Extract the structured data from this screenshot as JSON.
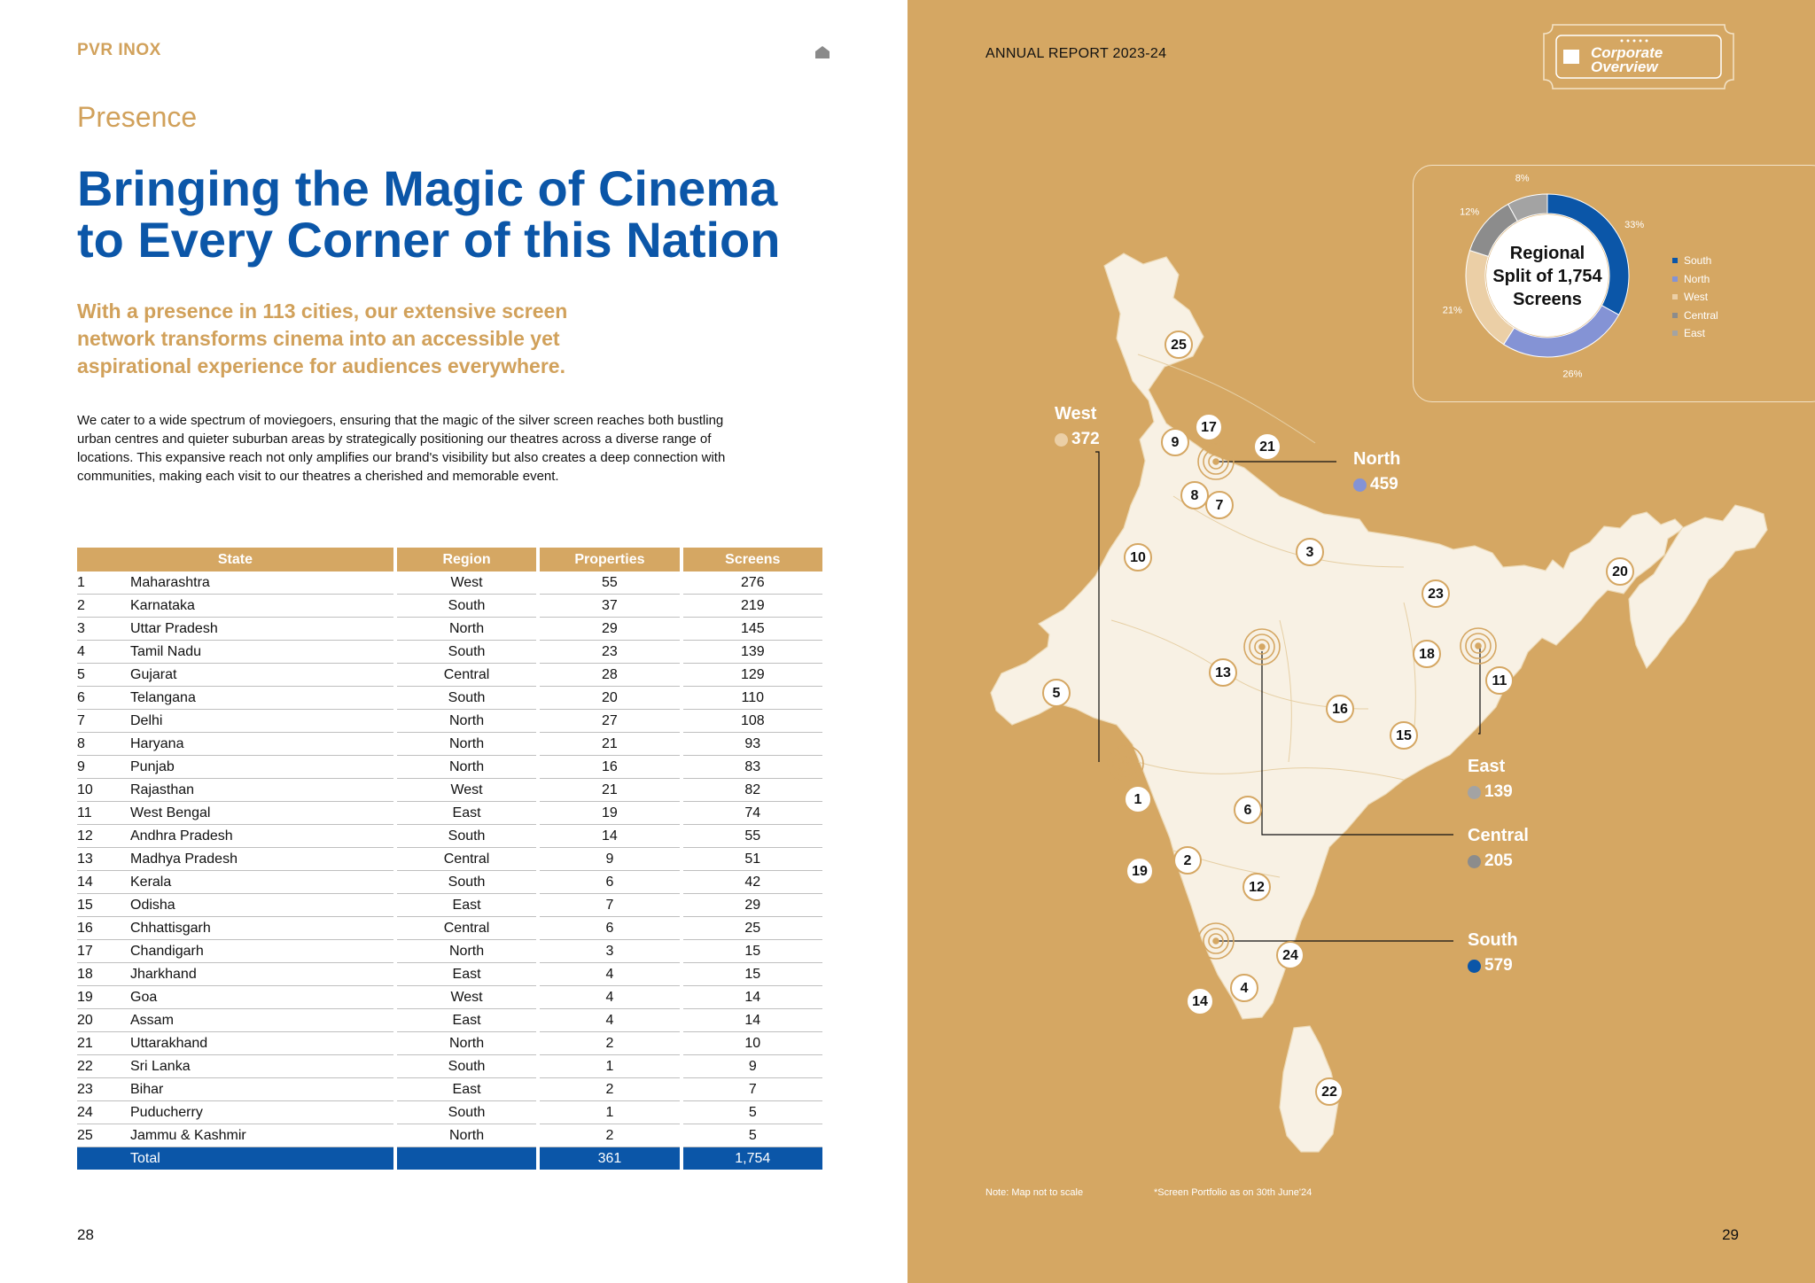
{
  "left_page": {
    "logo_brand": "PVR",
    "logo_brand2": "INOX",
    "section": "Presence",
    "headline_line1": "Bringing the Magic of Cinema",
    "headline_line2": "to Every Corner of this Nation",
    "subheading": "With a presence in 113 cities, our extensive screen network transforms cinema into an accessible yet aspirational experience for audiences everywhere.",
    "body": "We cater to a wide spectrum of moviegoers, ensuring that the magic of the silver screen reaches both bustling urban centres and quieter suburban areas by strategically positioning our theatres across a diverse range of locations. This expansive reach not only amplifies our brand's visibility but also creates a deep connection with communities, making each visit to our theatres a cherished and memorable event.",
    "page_number": "28"
  },
  "table": {
    "headers": [
      "State",
      "Region",
      "Properties",
      "Screens"
    ],
    "rows": [
      [
        "1",
        "Maharashtra",
        "West",
        "55",
        "276"
      ],
      [
        "2",
        "Karnataka",
        "South",
        "37",
        "219"
      ],
      [
        "3",
        "Uttar Pradesh",
        "North",
        "29",
        "145"
      ],
      [
        "4",
        "Tamil Nadu",
        "South",
        "23",
        "139"
      ],
      [
        "5",
        "Gujarat",
        "Central",
        "28",
        "129"
      ],
      [
        "6",
        "Telangana",
        "South",
        "20",
        "110"
      ],
      [
        "7",
        "Delhi",
        "North",
        "27",
        "108"
      ],
      [
        "8",
        "Haryana",
        "North",
        "21",
        "93"
      ],
      [
        "9",
        "Punjab",
        "North",
        "16",
        "83"
      ],
      [
        "10",
        "Rajasthan",
        "West",
        "21",
        "82"
      ],
      [
        "11",
        "West Bengal",
        "East",
        "19",
        "74"
      ],
      [
        "12",
        "Andhra Pradesh",
        "South",
        "14",
        "55"
      ],
      [
        "13",
        "Madhya Pradesh",
        "Central",
        "9",
        "51"
      ],
      [
        "14",
        "Kerala",
        "South",
        "6",
        "42"
      ],
      [
        "15",
        "Odisha",
        "East",
        "7",
        "29"
      ],
      [
        "16",
        "Chhattisgarh",
        "Central",
        "6",
        "25"
      ],
      [
        "17",
        "Chandigarh",
        "North",
        "3",
        "15"
      ],
      [
        "18",
        "Jharkhand",
        "East",
        "4",
        "15"
      ],
      [
        "19",
        "Goa",
        "West",
        "4",
        "14"
      ],
      [
        "20",
        "Assam",
        "East",
        "4",
        "14"
      ],
      [
        "21",
        "Uttarakhand",
        "North",
        "2",
        "10"
      ],
      [
        "22",
        "Sri Lanka",
        "South",
        "1",
        "9"
      ],
      [
        "23",
        "Bihar",
        "East",
        "2",
        "7"
      ],
      [
        "24",
        "Puducherry",
        "South",
        "1",
        "5"
      ],
      [
        "25",
        "Jammu & Kashmir",
        "North",
        "2",
        "5"
      ]
    ],
    "total": {
      "label": "Total",
      "properties": "361",
      "screens": "1,754"
    }
  },
  "right_page": {
    "report_title": "ANNUAL REPORT 2023-24",
    "badge_line1": "Corporate",
    "badge_line2": "Overview",
    "chart_center": [
      "Regional",
      "Split of 1,754",
      "Screens"
    ],
    "note_left": "Note: Map not to scale",
    "note_right": "*Screen Portfolio as on 30th June'24",
    "page_number": "29"
  },
  "chart_data": {
    "type": "pie",
    "title": "Regional Split of 1,754 Screens",
    "categories": [
      "South",
      "North",
      "West",
      "Central",
      "East"
    ],
    "values": [
      33,
      26,
      21,
      12,
      8
    ],
    "value_labels": [
      "33%",
      "26%",
      "21%",
      "12%",
      "8%"
    ],
    "colors": [
      "#0b56a8",
      "#8493d5",
      "#ebcfa6",
      "#8c8c8c",
      "#a3a3a3"
    ],
    "legend": "right"
  },
  "map_regions": [
    {
      "name": "West",
      "value": "372",
      "color": "#ebcfa6"
    },
    {
      "name": "North",
      "value": "459",
      "color": "#8493d5"
    },
    {
      "name": "East",
      "value": "139",
      "color": "#a3a3a3"
    },
    {
      "name": "Central",
      "value": "205",
      "color": "#8c8c8c"
    },
    {
      "name": "South",
      "value": "579",
      "color": "#0b56a8"
    }
  ],
  "map_markers": [
    "1",
    "2",
    "3",
    "4",
    "5",
    "6",
    "7",
    "8",
    "9",
    "10",
    "11",
    "12",
    "13",
    "14",
    "15",
    "16",
    "17",
    "18",
    "19",
    "20",
    "21",
    "22",
    "23",
    "24",
    "25"
  ],
  "colors": {
    "gold": "#d5a763",
    "blue": "#0b56a8",
    "map": "#f8f1e4"
  }
}
